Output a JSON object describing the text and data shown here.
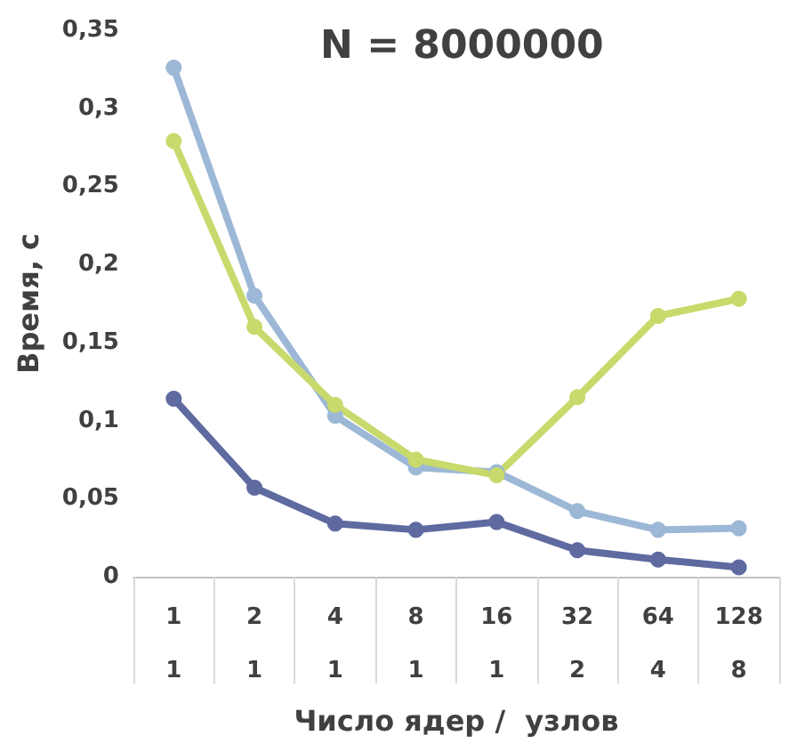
{
  "chart_data": {
    "type": "line",
    "title": "N = 8000000",
    "xlabel": "Число ядер /  узлов",
    "ylabel": "Время, с",
    "categories": [
      "1\n1",
      "2\n1",
      "4\n1",
      "8\n1",
      "16\n1",
      "32\n2",
      "64\n4",
      "128\n8"
    ],
    "series": [
      {
        "color": "#9db8d6",
        "values": [
          0.326,
          0.18,
          0.103,
          0.07,
          0.067,
          0.042,
          0.03,
          0.031
        ]
      },
      {
        "color": "#c8da6c",
        "values": [
          0.279,
          0.16,
          0.11,
          0.075,
          0.065,
          0.115,
          0.167,
          0.178
        ]
      },
      {
        "color": "#5e6aa0",
        "values": [
          0.114,
          0.057,
          0.034,
          0.03,
          0.035,
          0.017,
          0.011,
          0.006
        ]
      }
    ],
    "ylim": [
      0,
      0.35
    ],
    "yticks": [
      0,
      {
        "value": 0.05,
        "label": "0,05"
      },
      {
        "value": 0.1,
        "label": "0,1"
      },
      {
        "value": 0.15,
        "label": "0,15"
      },
      {
        "value": 0.2,
        "label": "0,2"
      },
      {
        "value": 0.25,
        "label": "0,25"
      },
      {
        "value": 0.3,
        "label": "0,3"
      },
      {
        "value": 0.35,
        "label": "0,35"
      }
    ],
    "grid": false,
    "marker": "circle",
    "line_style": "solid"
  }
}
